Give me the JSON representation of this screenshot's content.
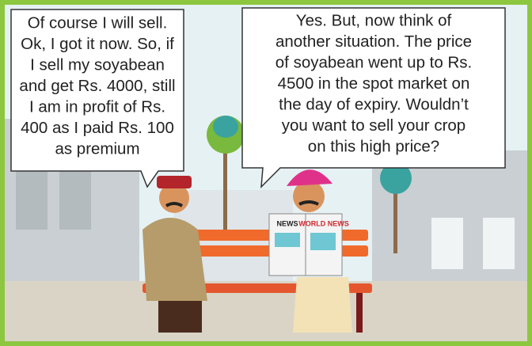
{
  "bubbles": [
    {
      "lines": [
        "Of course I will sell.",
        "Ok, I got it now. So, if",
        "I sell my soyabean",
        "and get Rs. 4000, still",
        "I am in profit of Rs.",
        "400 as I paid Rs. 100",
        "as premium"
      ]
    },
    {
      "lines": [
        "Yes. But, now think of",
        "another situation. The price",
        "of soyabean went up to Rs.",
        "4500 in the spot market on",
        "the day of expiry. Wouldn’t",
        "you want to sell your crop",
        "on this high price?"
      ]
    }
  ],
  "newspaper": {
    "left": "NEWS",
    "right": "WORLD NEWS"
  }
}
